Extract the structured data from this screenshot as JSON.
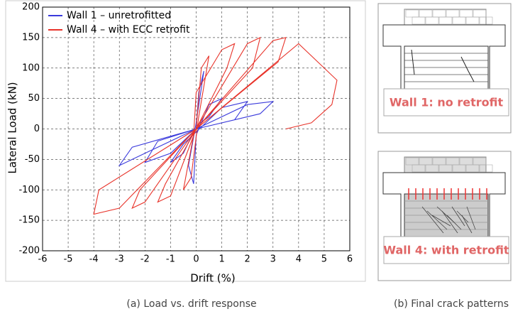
{
  "chart_data": {
    "type": "line",
    "xlabel": "Drift (%)",
    "ylabel": "Lateral Load (kN)",
    "xlim": [
      -6,
      6
    ],
    "xticks": [
      -6,
      -5,
      -4,
      -3,
      -2,
      -1,
      0,
      1,
      2,
      3,
      4,
      5,
      6
    ],
    "ylim": [
      -200,
      200
    ],
    "yticks": [
      -200,
      -150,
      -100,
      -50,
      0,
      50,
      100,
      150,
      200
    ],
    "grid": true,
    "legend": "upper left",
    "series": [
      {
        "name": "Wall 1 – unretrofitted",
        "color": "#3b3bdc",
        "x": [
          0,
          0.1,
          0.3,
          0,
          -0.3,
          -0.1,
          0,
          0.5,
          1,
          0.5,
          0,
          -0.5,
          -1,
          -0.5,
          0,
          1,
          2,
          1.5,
          0,
          -1,
          -2,
          -1.5,
          0,
          2,
          3,
          2.5,
          0,
          -2,
          -3,
          -2.5,
          0
        ],
        "values": [
          0,
          60,
          95,
          10,
          -60,
          -90,
          -10,
          40,
          50,
          20,
          5,
          -40,
          -55,
          -25,
          -5,
          35,
          45,
          15,
          0,
          -40,
          -55,
          -20,
          0,
          40,
          45,
          25,
          0,
          -40,
          -60,
          -30,
          0
        ]
      },
      {
        "name": "Wall 4 – with ECC retrofit",
        "color": "#e8332a",
        "x": [
          0,
          0.2,
          0.5,
          0.1,
          -0.2,
          -0.5,
          -0.1,
          0,
          1,
          1.5,
          1.2,
          0,
          -1,
          -1.5,
          -1.2,
          0,
          2,
          2.5,
          2.2,
          0,
          -2,
          -2.5,
          -2.2,
          0,
          3,
          3.5,
          3.2,
          0,
          -3,
          -4,
          -3.8,
          0,
          4,
          5.5,
          5.3,
          4.5,
          3.5
        ],
        "values": [
          0,
          100,
          120,
          20,
          -80,
          -100,
          -10,
          60,
          130,
          140,
          100,
          0,
          -110,
          -120,
          -90,
          0,
          140,
          150,
          100,
          0,
          -120,
          -130,
          -100,
          0,
          145,
          150,
          110,
          0,
          -130,
          -140,
          -100,
          0,
          140,
          80,
          40,
          10,
          0
        ]
      }
    ]
  },
  "panels": {
    "wall1": "Wall 1:  no retrofit",
    "wall4": "Wall 4:  with retrofit"
  },
  "captions": {
    "a": "(a) Load vs. drift response",
    "b": "(b) Final crack patterns"
  }
}
